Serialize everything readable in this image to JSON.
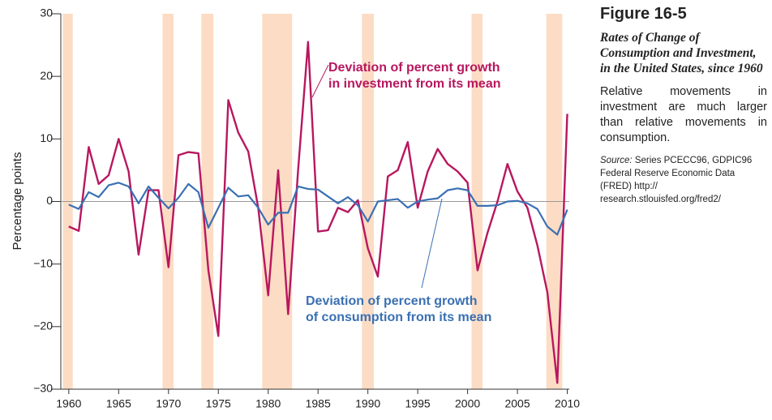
{
  "chart_data": {
    "type": "line",
    "y_label": "Percentage points",
    "x": [
      1960,
      1961,
      1962,
      1963,
      1964,
      1965,
      1966,
      1967,
      1968,
      1969,
      1970,
      1971,
      1972,
      1973,
      1974,
      1975,
      1976,
      1977,
      1978,
      1979,
      1980,
      1981,
      1982,
      1983,
      1984,
      1985,
      1986,
      1987,
      1988,
      1989,
      1990,
      1991,
      1992,
      1993,
      1994,
      1995,
      1996,
      1997,
      1998,
      1999,
      2000,
      2001,
      2002,
      2003,
      2004,
      2005,
      2006,
      2007,
      2008,
      2009,
      2010
    ],
    "series": [
      {
        "name": "Deviation of percent growth in investment from its mean",
        "color": "#b8175f",
        "values": [
          -4,
          -4.7,
          8.7,
          2.8,
          4.2,
          10,
          4.8,
          -8.5,
          1.8,
          1.8,
          -10.5,
          7.4,
          7.9,
          7.7,
          -11,
          -21.5,
          16.2,
          11,
          8,
          -1,
          -15,
          5,
          -18,
          5,
          25.5,
          -4.8,
          -4.6,
          -1,
          -1.7,
          0.2,
          -7.5,
          -12,
          4,
          5,
          9.5,
          -1,
          4.8,
          8.4,
          6,
          4.8,
          3,
          -11,
          -5,
          0,
          6,
          1.6,
          -1,
          -7,
          -14.5,
          -29,
          14
        ]
      },
      {
        "name": "Deviation of percent growth of consumption from its mean",
        "color": "#3a70b3",
        "values": [
          -0.5,
          -1.2,
          1.5,
          0.7,
          2.6,
          3,
          2.4,
          -0.3,
          2.4,
          0.6,
          -1.1,
          0.6,
          2.8,
          1.5,
          -4.2,
          -1,
          2.2,
          0.8,
          1,
          -1,
          -3.7,
          -1.8,
          -1.8,
          2.4,
          2,
          1.9,
          0.8,
          -0.3,
          0.7,
          -0.6,
          -3.2,
          0,
          0.2,
          0.4,
          -1,
          0,
          0.3,
          0.5,
          1.8,
          2.1,
          1.8,
          -0.7,
          -0.7,
          -0.6,
          0,
          0.1,
          -0.3,
          -1.2,
          -4,
          -5.3,
          -1.3
        ]
      }
    ],
    "annotations": [
      {
        "lines": [
          "Deviation of percent growth",
          "in investment from its mean"
        ]
      },
      {
        "lines": [
          "Deviation of percent growth",
          "of consumption from its mean"
        ]
      }
    ],
    "recessions": [
      [
        1959.4,
        1960.4
      ],
      [
        1969.4,
        1970.5
      ],
      [
        1973.3,
        1974.5
      ],
      [
        1979.4,
        1982.4
      ],
      [
        1989.4,
        1990.6
      ],
      [
        2000.4,
        2001.5
      ],
      [
        2007.9,
        2009.5
      ]
    ],
    "recession_color": "#fcdcc4",
    "xlim": [
      1959.2,
      2010.2
    ],
    "xticks": [
      1960,
      1965,
      1970,
      1975,
      1980,
      1985,
      1990,
      1995,
      2000,
      2005,
      2010
    ],
    "ylim": [
      -30,
      30
    ],
    "yticks": [
      {
        "value": -30,
        "label": "−30"
      },
      {
        "value": -20,
        "label": "−20"
      },
      {
        "value": -10,
        "label": "−10"
      },
      0,
      10,
      20,
      30
    ]
  },
  "figure": {
    "number": "Figure 16-5",
    "subtitle": "Rates of Change of Consumption and Investment, in the United States, since 1960",
    "description": "Relative movements in investment are much larger than relative movements in consumption.",
    "source_label": "Source:",
    "source": "Series PCECC96, GDPIC96 Federal Reserve Economic Data (FRED) http:// research.stlouisfed.org/fred2/"
  }
}
